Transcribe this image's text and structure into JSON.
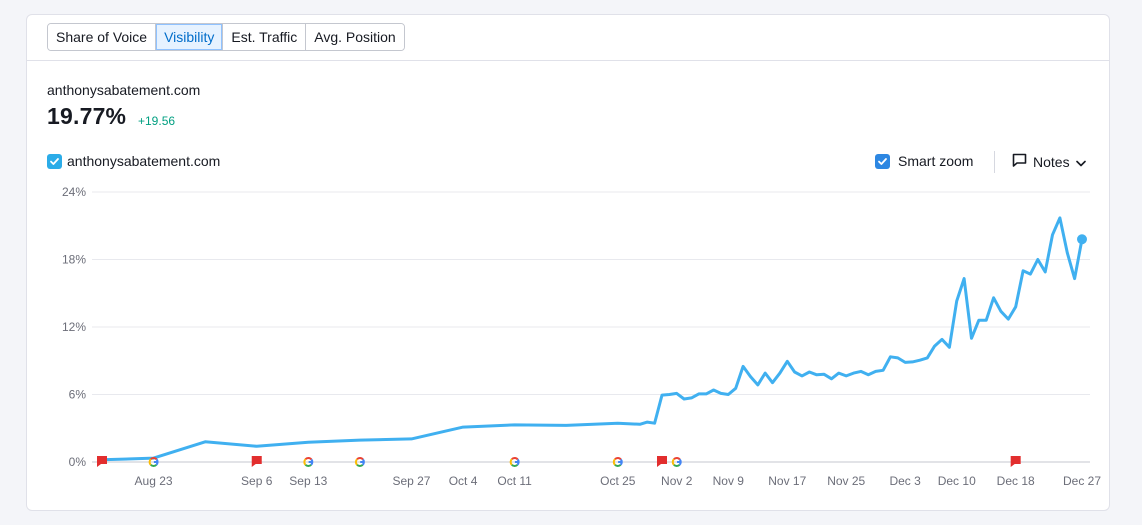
{
  "tabs": [
    "Share of Voice",
    "Visibility",
    "Est. Traffic",
    "Avg. Position"
  ],
  "active_tab": "Visibility",
  "summary": {
    "domain": "anthonysabatement.com",
    "value": "19.77%",
    "change": "+19.56"
  },
  "legend": {
    "series_label": "anthonysabatement.com",
    "series_color": "#40b0f0"
  },
  "controls": {
    "smart_zoom_label": "Smart zoom",
    "notes_label": "Notes"
  },
  "colors": {
    "active_tab_bg": "#e6f2ff",
    "active_tab_text": "#006dca",
    "delta": "#009f81",
    "line": "#40b0f0",
    "flag": "#e22e2e"
  },
  "chart_data": {
    "type": "line",
    "y_ticks": [
      "0%",
      "6%",
      "12%",
      "18%",
      "24%"
    ],
    "ylim": [
      0,
      24
    ],
    "y_unit": "%",
    "x_ticks": [
      {
        "date": "2023-08-23",
        "label": "Aug 23"
      },
      {
        "date": "2023-09-06",
        "label": "Sep 6"
      },
      {
        "date": "2023-09-13",
        "label": "Sep 13"
      },
      {
        "date": "2023-09-27",
        "label": "Sep 27"
      },
      {
        "date": "2023-10-04",
        "label": "Oct 4"
      },
      {
        "date": "2023-10-11",
        "label": "Oct 11"
      },
      {
        "date": "2023-10-25",
        "label": "Oct 25"
      },
      {
        "date": "2023-11-02",
        "label": "Nov 2"
      },
      {
        "date": "2023-11-09",
        "label": "Nov 9"
      },
      {
        "date": "2023-11-17",
        "label": "Nov 17"
      },
      {
        "date": "2023-11-25",
        "label": "Nov 25"
      },
      {
        "date": "2023-12-03",
        "label": "Dec 3"
      },
      {
        "date": "2023-12-10",
        "label": "Dec 10"
      },
      {
        "date": "2023-12-18",
        "label": "Dec 18"
      },
      {
        "date": "2023-12-27",
        "label": "Dec 27"
      }
    ],
    "grid": true,
    "series": [
      {
        "name": "anthonysabatement.com",
        "points": [
          [
            "2023-08-16",
            0.2
          ],
          [
            "2023-08-23",
            0.35
          ],
          [
            "2023-08-30",
            1.8
          ],
          [
            "2023-09-06",
            1.4
          ],
          [
            "2023-09-13",
            1.75
          ],
          [
            "2023-09-20",
            1.95
          ],
          [
            "2023-09-27",
            2.05
          ],
          [
            "2023-10-04",
            3.1
          ],
          [
            "2023-10-11",
            3.3
          ],
          [
            "2023-10-18",
            3.25
          ],
          [
            "2023-10-25",
            3.45
          ],
          [
            "2023-10-28",
            3.35
          ],
          [
            "2023-10-29",
            3.55
          ],
          [
            "2023-10-30",
            3.45
          ],
          [
            "2023-10-31",
            5.95
          ],
          [
            "2023-11-01",
            6.0
          ],
          [
            "2023-11-02",
            6.1
          ],
          [
            "2023-11-03",
            5.6
          ],
          [
            "2023-11-04",
            5.7
          ],
          [
            "2023-11-05",
            6.05
          ],
          [
            "2023-11-06",
            6.05
          ],
          [
            "2023-11-07",
            6.4
          ],
          [
            "2023-11-08",
            6.1
          ],
          [
            "2023-11-09",
            6.0
          ],
          [
            "2023-11-10",
            6.55
          ],
          [
            "2023-11-11",
            8.5
          ],
          [
            "2023-11-12",
            7.6
          ],
          [
            "2023-11-13",
            6.85
          ],
          [
            "2023-11-14",
            7.9
          ],
          [
            "2023-11-15",
            7.05
          ],
          [
            "2023-11-16",
            7.9
          ],
          [
            "2023-11-17",
            8.95
          ],
          [
            "2023-11-18",
            8.0
          ],
          [
            "2023-11-19",
            7.65
          ],
          [
            "2023-11-20",
            8.0
          ],
          [
            "2023-11-21",
            7.75
          ],
          [
            "2023-11-22",
            7.8
          ],
          [
            "2023-11-23",
            7.4
          ],
          [
            "2023-11-24",
            7.9
          ],
          [
            "2023-11-25",
            7.65
          ],
          [
            "2023-11-26",
            7.9
          ],
          [
            "2023-11-27",
            8.05
          ],
          [
            "2023-11-28",
            7.75
          ],
          [
            "2023-11-29",
            8.05
          ],
          [
            "2023-11-30",
            8.15
          ],
          [
            "2023-12-01",
            9.35
          ],
          [
            "2023-12-02",
            9.25
          ],
          [
            "2023-12-03",
            8.85
          ],
          [
            "2023-12-04",
            8.9
          ],
          [
            "2023-12-05",
            9.05
          ],
          [
            "2023-12-06",
            9.25
          ],
          [
            "2023-12-07",
            10.3
          ],
          [
            "2023-12-08",
            10.9
          ],
          [
            "2023-12-09",
            10.2
          ],
          [
            "2023-12-10",
            14.3
          ],
          [
            "2023-12-11",
            16.3
          ],
          [
            "2023-12-12",
            11.0
          ],
          [
            "2023-12-13",
            12.6
          ],
          [
            "2023-12-14",
            12.6
          ],
          [
            "2023-12-15",
            14.6
          ],
          [
            "2023-12-16",
            13.4
          ],
          [
            "2023-12-17",
            12.7
          ],
          [
            "2023-12-18",
            13.8
          ],
          [
            "2023-12-19",
            17.0
          ],
          [
            "2023-12-20",
            16.7
          ],
          [
            "2023-12-21",
            18.0
          ],
          [
            "2023-12-22",
            16.9
          ],
          [
            "2023-12-23",
            20.2
          ],
          [
            "2023-12-24",
            21.7
          ],
          [
            "2023-12-25",
            18.6
          ],
          [
            "2023-12-26",
            16.3
          ],
          [
            "2023-12-27",
            19.8
          ]
        ]
      }
    ],
    "markers": [
      {
        "kind": "note-flag",
        "date": "2023-08-16"
      },
      {
        "kind": "google-update",
        "date": "2023-08-23"
      },
      {
        "kind": "note-flag",
        "date": "2023-09-06"
      },
      {
        "kind": "google-update",
        "date": "2023-09-13"
      },
      {
        "kind": "google-update",
        "date": "2023-09-20"
      },
      {
        "kind": "google-update",
        "date": "2023-10-11"
      },
      {
        "kind": "google-update",
        "date": "2023-10-25"
      },
      {
        "kind": "note-flag",
        "date": "2023-10-31"
      },
      {
        "kind": "google-update",
        "date": "2023-11-02"
      },
      {
        "kind": "note-flag",
        "date": "2023-12-18"
      }
    ]
  }
}
